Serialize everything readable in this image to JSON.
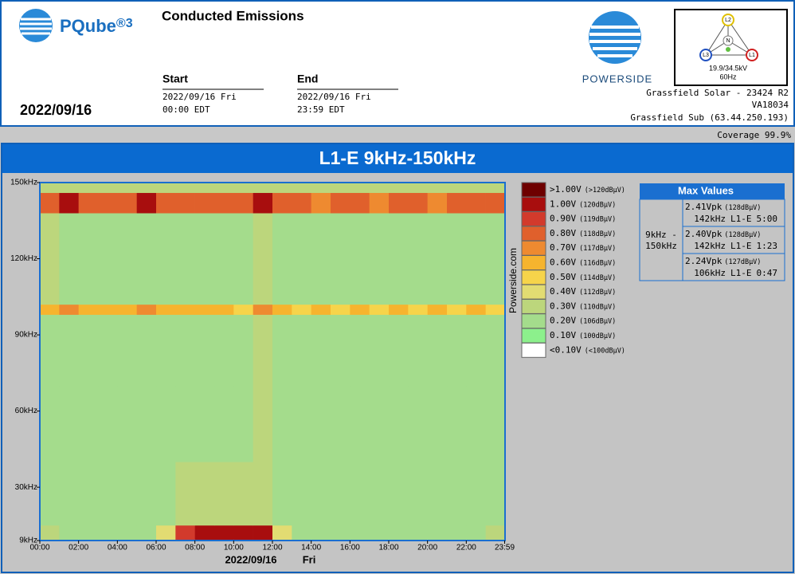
{
  "header": {
    "brand": "PQube",
    "brand_mark": "®3",
    "title": "Conducted Emissions",
    "start_label": "Start",
    "start_date": "2022/09/16 Fri",
    "start_time": "00:00 EDT",
    "end_label": "End",
    "end_date": "2022/09/16 Fri",
    "end_time": "23:59 EDT",
    "date": "2022/09/16",
    "company": "POWERSIDE",
    "meter": {
      "l1": "L1",
      "l2": "L2",
      "l3": "L3",
      "n": "N",
      "voltage": "19.9/34.5kV",
      "frequency": "60Hz"
    },
    "site": [
      "Grassfield Solar - 23424 R2",
      "VA18034",
      "Grassfield Sub (63.44.250.193)"
    ],
    "coverage": "Coverage 99.9%"
  },
  "chart_data": {
    "type": "heatmap",
    "title": "L1-E 9kHz-150kHz",
    "x_label": "2022/09/16",
    "x_label_day": "Fri",
    "watermark": "Powerside.com",
    "x_bins": [
      0,
      1,
      2,
      3,
      4,
      5,
      6,
      7,
      8,
      9,
      10,
      11,
      12,
      13,
      14,
      15,
      16,
      17,
      18,
      19,
      20,
      21,
      22,
      23,
      24
    ],
    "y_bins": [
      9,
      15,
      40,
      70,
      98,
      102,
      138,
      146,
      150
    ],
    "xlim": [
      0,
      24
    ],
    "ylim": [
      9,
      150
    ],
    "xticks": [
      {
        "value": 0,
        "label": "00:00"
      },
      {
        "value": 2,
        "label": "02:00"
      },
      {
        "value": 4,
        "label": "04:00"
      },
      {
        "value": 6,
        "label": "06:00"
      },
      {
        "value": 8,
        "label": "08:00"
      },
      {
        "value": 10,
        "label": "10:00"
      },
      {
        "value": 12,
        "label": "12:00"
      },
      {
        "value": 14,
        "label": "14:00"
      },
      {
        "value": 16,
        "label": "16:00"
      },
      {
        "value": 18,
        "label": "18:00"
      },
      {
        "value": 20,
        "label": "20:00"
      },
      {
        "value": 22,
        "label": "22:00"
      },
      {
        "value": 23.98,
        "label": "23:59"
      }
    ],
    "yticks": [
      {
        "value": 150,
        "label": "150kHz"
      },
      {
        "value": 120,
        "label": "120kHz"
      },
      {
        "value": 90,
        "label": "90kHz"
      },
      {
        "value": 60,
        "label": "60kHz"
      },
      {
        "value": 30,
        "label": "30kHz"
      },
      {
        "value": 9,
        "label": "9kHz"
      }
    ],
    "values": [
      [
        0.3,
        0.2,
        0.2,
        0.2,
        0.2,
        0.2,
        0.4,
        0.9,
        1.0,
        1.0,
        1.0,
        1.0,
        0.4,
        0.2,
        0.2,
        0.2,
        0.2,
        0.2,
        0.2,
        0.2,
        0.2,
        0.2,
        0.2,
        0.3
      ],
      [
        0.2,
        0.2,
        0.2,
        0.2,
        0.2,
        0.2,
        0.2,
        0.3,
        0.3,
        0.3,
        0.3,
        0.3,
        0.2,
        0.2,
        0.2,
        0.2,
        0.2,
        0.2,
        0.2,
        0.2,
        0.2,
        0.2,
        0.2,
        0.2
      ],
      [
        0.2,
        0.2,
        0.2,
        0.2,
        0.2,
        0.2,
        0.2,
        0.2,
        0.2,
        0.2,
        0.2,
        0.3,
        0.2,
        0.2,
        0.2,
        0.2,
        0.2,
        0.2,
        0.2,
        0.2,
        0.2,
        0.2,
        0.2,
        0.2
      ],
      [
        0.2,
        0.2,
        0.2,
        0.2,
        0.2,
        0.2,
        0.2,
        0.2,
        0.2,
        0.2,
        0.2,
        0.3,
        0.2,
        0.2,
        0.2,
        0.2,
        0.2,
        0.2,
        0.2,
        0.2,
        0.2,
        0.2,
        0.2,
        0.2
      ],
      [
        0.6,
        0.7,
        0.6,
        0.6,
        0.6,
        0.7,
        0.6,
        0.6,
        0.6,
        0.6,
        0.5,
        0.7,
        0.6,
        0.5,
        0.6,
        0.5,
        0.6,
        0.5,
        0.6,
        0.5,
        0.6,
        0.5,
        0.6,
        0.5
      ],
      [
        0.3,
        0.2,
        0.2,
        0.2,
        0.2,
        0.2,
        0.2,
        0.2,
        0.2,
        0.2,
        0.2,
        0.3,
        0.2,
        0.2,
        0.2,
        0.2,
        0.2,
        0.2,
        0.2,
        0.2,
        0.2,
        0.2,
        0.2,
        0.2
      ],
      [
        0.8,
        1.0,
        0.8,
        0.8,
        0.8,
        1.0,
        0.8,
        0.8,
        0.8,
        0.8,
        0.8,
        1.0,
        0.8,
        0.8,
        0.7,
        0.8,
        0.8,
        0.7,
        0.8,
        0.8,
        0.7,
        0.8,
        0.8,
        0.8
      ],
      [
        0.3,
        0.3,
        0.3,
        0.3,
        0.3,
        0.3,
        0.3,
        0.3,
        0.3,
        0.3,
        0.3,
        0.3,
        0.3,
        0.3,
        0.3,
        0.3,
        0.3,
        0.3,
        0.3,
        0.3,
        0.3,
        0.3,
        0.3,
        0.3
      ]
    ],
    "legend": [
      {
        "label": ">1.00V",
        "sublabel": "(>120dBµV)",
        "color": "#6e0000"
      },
      {
        "label": "1.00V",
        "sublabel": "(120dBµV)",
        "color": "#a80e0e",
        "value": 1.0
      },
      {
        "label": "0.90V",
        "sublabel": "(119dBµV)",
        "color": "#d23a2c",
        "value": 0.9
      },
      {
        "label": "0.80V",
        "sublabel": "(118dBµV)",
        "color": "#e0602c",
        "value": 0.8
      },
      {
        "label": "0.70V",
        "sublabel": "(117dBµV)",
        "color": "#ee8a30",
        "value": 0.7
      },
      {
        "label": "0.60V",
        "sublabel": "(116dBµV)",
        "color": "#f6b42e",
        "value": 0.6
      },
      {
        "label": "0.50V",
        "sublabel": "(114dBµV)",
        "color": "#f6d44a",
        "value": 0.5
      },
      {
        "label": "0.40V",
        "sublabel": "(112dBµV)",
        "color": "#e2dc72",
        "value": 0.4
      },
      {
        "label": "0.30V",
        "sublabel": "(110dBµV)",
        "color": "#bcd67c",
        "value": 0.3
      },
      {
        "label": "0.20V",
        "sublabel": "(106dBµV)",
        "color": "#a4dc8c",
        "value": 0.2
      },
      {
        "label": "0.10V",
        "sublabel": "(100dBµV)",
        "color": "#8cf08c",
        "value": 0.1
      },
      {
        "label": "<0.10V",
        "sublabel": "(<100dBµV)",
        "color": "#ffffff"
      }
    ],
    "max_values": {
      "title": "Max Values",
      "band_lines": [
        "9kHz -",
        "150kHz"
      ],
      "rows": [
        {
          "value": "2.41Vpk",
          "db": "(128dBµV)",
          "freq": "142kHz",
          "channel": "L1-E",
          "time": "5:00"
        },
        {
          "value": "2.40Vpk",
          "db": "(128dBµV)",
          "freq": "142kHz",
          "channel": "L1-E",
          "time": "1:23"
        },
        {
          "value": "2.24Vpk",
          "db": "(127dBµV)",
          "freq": "106kHz",
          "channel": "L1-E",
          "time": "0:47"
        }
      ]
    }
  }
}
